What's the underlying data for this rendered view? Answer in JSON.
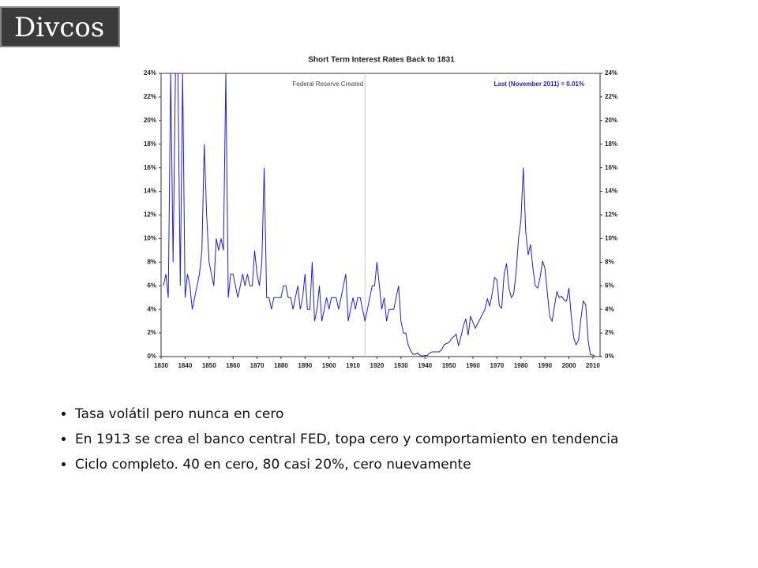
{
  "header": {
    "logo": "Divcos"
  },
  "chart_data": {
    "type": "line",
    "title": "Short Term Interest Rates Back to 1831",
    "annotations": [
      {
        "text": "Federal Reserve Created",
        "x": 1915
      },
      {
        "text": "Last (November 2011) = 0.01%"
      }
    ],
    "xlim": [
      1830,
      2013
    ],
    "xticks": [
      1830,
      1840,
      1850,
      1860,
      1870,
      1880,
      1890,
      1900,
      1910,
      1920,
      1930,
      1940,
      1950,
      1960,
      1970,
      1980,
      1990,
      2000,
      2010
    ],
    "ylim": [
      0,
      24
    ],
    "yticks": [
      {
        "value": 0,
        "label": "0%"
      },
      {
        "value": 2,
        "label": "2%"
      },
      {
        "value": 4,
        "label": "4%"
      },
      {
        "value": 6,
        "label": "6%"
      },
      {
        "value": 8,
        "label": "8%"
      },
      {
        "value": 10,
        "label": "10%"
      },
      {
        "value": 12,
        "label": "12%"
      },
      {
        "value": 14,
        "label": "14%"
      },
      {
        "value": 16,
        "label": "16%"
      },
      {
        "value": 18,
        "label": "18%"
      },
      {
        "value": 20,
        "label": "20%"
      },
      {
        "value": 22,
        "label": "22%"
      },
      {
        "value": 24,
        "label": "24%"
      }
    ],
    "x": [
      1831,
      1832,
      1833,
      1834,
      1835,
      1836,
      1837,
      1838,
      1839,
      1840,
      1841,
      1842,
      1843,
      1844,
      1845,
      1846,
      1847,
      1848,
      1849,
      1850,
      1851,
      1852,
      1853,
      1854,
      1855,
      1856,
      1857,
      1858,
      1859,
      1860,
      1861,
      1862,
      1863,
      1864,
      1865,
      1866,
      1867,
      1868,
      1869,
      1870,
      1871,
      1872,
      1873,
      1874,
      1875,
      1876,
      1877,
      1878,
      1879,
      1880,
      1881,
      1882,
      1883,
      1884,
      1885,
      1886,
      1887,
      1888,
      1889,
      1890,
      1891,
      1892,
      1893,
      1894,
      1895,
      1896,
      1897,
      1898,
      1899,
      1900,
      1901,
      1902,
      1903,
      1904,
      1905,
      1906,
      1907,
      1908,
      1909,
      1910,
      1911,
      1912,
      1913,
      1914,
      1915,
      1916,
      1917,
      1918,
      1919,
      1920,
      1921,
      1922,
      1923,
      1924,
      1925,
      1926,
      1927,
      1928,
      1929,
      1930,
      1931,
      1932,
      1933,
      1934,
      1935,
      1936,
      1937,
      1938,
      1939,
      1940,
      1941,
      1942,
      1943,
      1944,
      1945,
      1946,
      1947,
      1948,
      1949,
      1950,
      1951,
      1952,
      1953,
      1954,
      1955,
      1956,
      1957,
      1958,
      1959,
      1960,
      1961,
      1962,
      1963,
      1964,
      1965,
      1966,
      1967,
      1968,
      1969,
      1970,
      1971,
      1972,
      1973,
      1974,
      1975,
      1976,
      1977,
      1978,
      1979,
      1980,
      1981,
      1982,
      1983,
      1984,
      1985,
      1986,
      1987,
      1988,
      1989,
      1990,
      1991,
      1992,
      1993,
      1994,
      1995,
      1996,
      1997,
      1998,
      1999,
      2000,
      2001,
      2002,
      2003,
      2004,
      2005,
      2006,
      2007,
      2008,
      2009,
      2010,
      2011
    ],
    "series": [
      {
        "color": "#1f1fd6",
        "values": [
          6,
          7,
          5,
          24,
          8,
          24,
          24,
          6,
          24,
          5,
          7,
          6,
          4,
          5,
          6,
          7,
          9,
          18,
          12,
          8,
          7,
          6,
          10,
          9,
          10,
          9,
          24,
          5,
          7,
          7,
          6,
          5,
          6,
          7,
          6,
          7,
          6,
          6,
          9,
          7,
          6,
          8,
          16,
          5,
          5,
          4,
          5,
          5,
          5,
          5,
          6,
          6,
          5,
          5,
          4,
          5,
          6,
          4,
          5,
          7,
          4,
          4,
          8,
          3,
          4,
          6,
          3,
          4,
          5,
          4,
          5,
          5,
          5,
          4,
          5,
          6,
          7,
          3,
          4,
          5,
          4,
          5,
          5,
          4,
          3,
          4,
          5,
          6,
          6,
          8,
          6,
          4,
          5,
          3,
          4,
          4,
          4,
          5,
          6,
          3,
          2,
          2,
          1,
          0.5,
          0.2,
          0.2,
          0.3,
          0.1,
          0.05,
          0.1,
          0.1,
          0.3,
          0.4,
          0.4,
          0.4,
          0.4,
          0.6,
          1.0,
          1.1,
          1.2,
          1.5,
          1.7,
          1.9,
          0.9,
          1.7,
          2.6,
          3.2,
          1.8,
          3.4,
          2.9,
          2.4,
          2.8,
          3.2,
          3.6,
          4.0,
          4.9,
          4.3,
          5.3,
          6.7,
          6.5,
          4.3,
          4.1,
          7.0,
          7.9,
          5.8,
          5.0,
          5.3,
          7.2,
          10.0,
          11.5,
          16,
          10.6,
          8.6,
          9.5,
          7.5,
          6.0,
          5.8,
          6.7,
          8.1,
          7.5,
          5.4,
          3.4,
          3.0,
          4.3,
          5.5,
          5.0,
          5.1,
          4.8,
          4.7,
          5.8,
          3.4,
          1.6,
          1.0,
          1.4,
          3.2,
          4.7,
          4.4,
          1.4,
          0.15,
          0.14,
          0.01
        ]
      }
    ]
  },
  "bullets": [
    "Tasa volátil pero nunca en cero",
    "En 1913 se crea el banco central FED, topa cero y comportamiento en tendencia",
    "Ciclo completo. 40 en cero, 80 casi 20%, cero nuevamente"
  ]
}
